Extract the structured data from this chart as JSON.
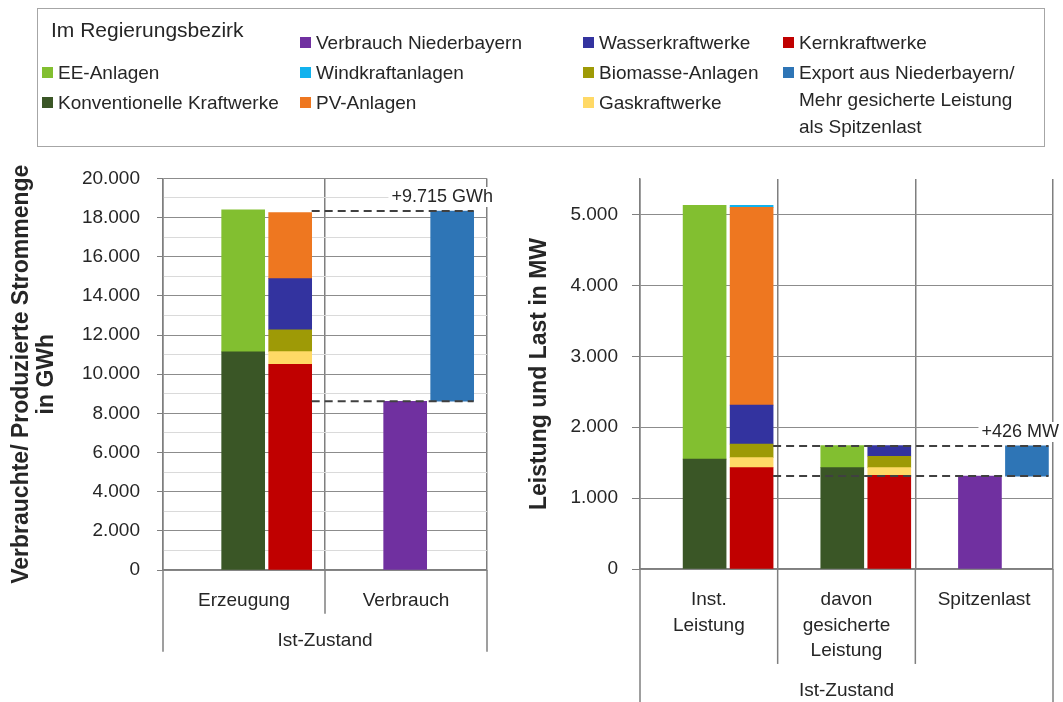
{
  "chart_data": [
    {
      "type": "bar",
      "stacked": true,
      "categories": [
        "Erzeugung",
        null,
        "Verbrauch",
        null
      ],
      "xlabel": "Ist-Zustand",
      "ylabel": "Verbrauchte/ Produzierte Strommenge in GWh",
      "ylim": [
        0,
        20000
      ],
      "yticks": [
        0,
        {
          "value": 1000,
          "label": null
        },
        {
          "value": 2000,
          "label": "2.000"
        },
        {
          "value": 3000,
          "label": null
        },
        {
          "value": 4000,
          "label": "4.000"
        },
        {
          "value": 5000,
          "label": null
        },
        {
          "value": 6000,
          "label": "6.000"
        },
        {
          "value": 7000,
          "label": null
        },
        {
          "value": 8000,
          "label": "8.000"
        },
        {
          "value": 9000,
          "label": null
        },
        {
          "value": 10000,
          "label": "10.000"
        },
        {
          "value": 11000,
          "label": null
        },
        {
          "value": 12000,
          "label": "12.000"
        },
        {
          "value": 13000,
          "label": null
        },
        {
          "value": 14000,
          "label": "14.000"
        },
        {
          "value": 15000,
          "label": null
        },
        {
          "value": 16000,
          "label": "16.000"
        },
        {
          "value": 17000,
          "label": null
        },
        {
          "value": 18000,
          "label": "18.000"
        },
        {
          "value": 19000,
          "label": null
        },
        {
          "value": 20000,
          "label": "20.000"
        }
      ],
      "grid": true,
      "series": [
        {
          "color": "#2e75b6",
          "values": [
            null,
            null,
            null,
            9715
          ],
          "base": [
            null,
            null,
            null,
            8620
          ]
        },
        {
          "color": "#c00000",
          "values": [
            null,
            10510,
            null,
            null
          ]
        },
        {
          "color": "#ffd966",
          "values": [
            null,
            640,
            null,
            null
          ]
        },
        {
          "color": "#9e9a06",
          "values": [
            null,
            1120,
            null,
            null
          ]
        },
        {
          "color": "#33339f",
          "values": [
            null,
            2610,
            null,
            null
          ]
        },
        {
          "color": "#ee7720",
          "values": [
            null,
            3370,
            null,
            null
          ]
        },
        {
          "color": "#7030a0",
          "values": [
            null,
            null,
            8620,
            null
          ]
        },
        {
          "color": "#3a5626",
          "values": [
            11140,
            null,
            null,
            null
          ]
        },
        {
          "color": "#82bf30",
          "values": [
            7250,
            null,
            null,
            null
          ]
        }
      ],
      "ref_lines": [
        {
          "axis": "y",
          "value": 18335,
          "label": "+9.715 GWh",
          "line_style": "dashed",
          "color": "#404040"
        },
        {
          "axis": "y",
          "value": 8620,
          "line_style": "dashed",
          "color": "#404040"
        }
      ]
    },
    {
      "type": "bar",
      "stacked": true,
      "categories": [
        "Inst. Leistung",
        null,
        "davon gesicherte Leistung",
        null,
        "Spitzenlast",
        null
      ],
      "xlabel": "Ist-Zustand",
      "ylabel": "Leistung und Last in MW",
      "ylim": [
        0,
        5500
      ],
      "yticks": [
        0,
        {
          "value": 1000,
          "label": "1.000"
        },
        {
          "value": 2000,
          "label": "2.000"
        },
        {
          "value": 3000,
          "label": "3.000"
        },
        {
          "value": 4000,
          "label": "4.000"
        },
        {
          "value": 5000,
          "label": "5.000"
        }
      ],
      "grid": true,
      "legend": "top",
      "legend_title": "Im Regierungsbezirk",
      "series": [
        {
          "name": "Export aus Niederbayern/ Mehr gesicherte Leistung als Spitzenlast",
          "color": "#2e75b6",
          "values": [
            null,
            null,
            null,
            null,
            null,
            426
          ],
          "base": [
            null,
            null,
            null,
            null,
            null,
            1310
          ]
        },
        {
          "name": "Kernkraftwerke",
          "color": "#c00000",
          "values": [
            null,
            1430,
            null,
            1320,
            null,
            null
          ]
        },
        {
          "name": "Gaskraftwerke",
          "color": "#ffd966",
          "values": [
            null,
            140,
            null,
            110,
            null,
            null
          ]
        },
        {
          "name": "Biomasse-Anlagen",
          "color": "#9e9a06",
          "values": [
            null,
            190,
            null,
            160,
            null,
            null
          ]
        },
        {
          "name": "Wasserkraftwerke",
          "color": "#33339f",
          "values": [
            null,
            550,
            null,
            150,
            null,
            null
          ]
        },
        {
          "name": "PV-Anlagen",
          "color": "#ee7720",
          "values": [
            null,
            2790,
            null,
            null,
            null,
            null
          ]
        },
        {
          "name": "Windkraftanlagen",
          "color": "#11b2ee",
          "values": [
            null,
            30,
            null,
            null,
            null,
            null
          ]
        },
        {
          "name": "Verbrauch Niederbayern",
          "color": "#7030a0",
          "values": [
            null,
            null,
            null,
            null,
            1310,
            null
          ]
        },
        {
          "name": "Konventionelle Kraftwerke",
          "color": "#3a5626",
          "values": [
            1550,
            null,
            1430,
            null,
            null,
            null
          ]
        },
        {
          "name": "EE-Anlagen",
          "color": "#82bf30",
          "values": [
            3580,
            null,
            310,
            null,
            null,
            null
          ]
        }
      ],
      "ref_lines": [
        {
          "axis": "y",
          "value": 1736,
          "label": "+426 MW",
          "line_style": "dashed",
          "color": "#404040"
        },
        {
          "axis": "y",
          "value": 1310,
          "line_style": "dashed",
          "color": "#404040"
        }
      ]
    }
  ]
}
